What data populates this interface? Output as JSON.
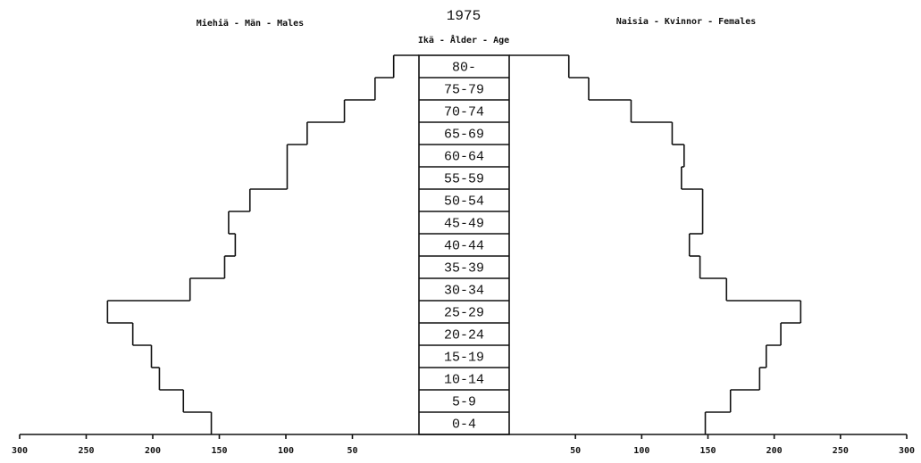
{
  "chart_data": {
    "type": "population_pyramid",
    "title": "1975",
    "category_label": "Ikä - Ålder - Age",
    "categories": [
      "0-4",
      "5-9",
      "10-14",
      "15-19",
      "20-24",
      "25-29",
      "30-34",
      "35-39",
      "40-44",
      "45-49",
      "50-54",
      "55-59",
      "60-64",
      "65-69",
      "70-74",
      "75-79",
      "80-"
    ],
    "series": [
      {
        "name": "Miehiä - Män - Males",
        "color": "#111111",
        "side": "left",
        "values": [
          156,
          177,
          195,
          201,
          215,
          234,
          172,
          146,
          138,
          143,
          127,
          99,
          99,
          84,
          56,
          33,
          19
        ]
      },
      {
        "name": "Naisia - Kvinnor - Females",
        "color": "#111111",
        "side": "right",
        "values": [
          148,
          167,
          189,
          194,
          205,
          220,
          164,
          144,
          136,
          146,
          146,
          130,
          132,
          123,
          92,
          60,
          45
        ]
      }
    ],
    "xlim": [
      0,
      300
    ],
    "xticks": [
      50,
      100,
      150,
      200,
      250,
      300
    ]
  }
}
